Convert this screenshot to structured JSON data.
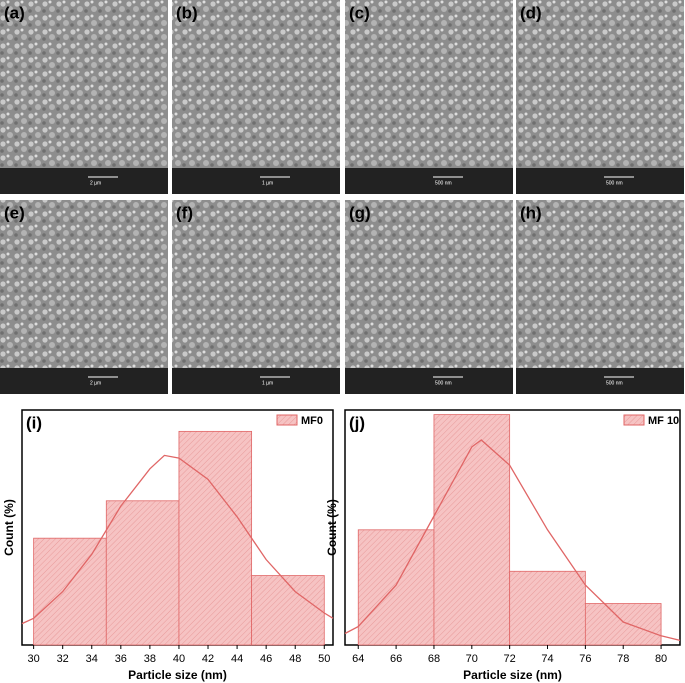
{
  "panels": [
    {
      "label": "(a)",
      "scale": "2 µm"
    },
    {
      "label": "(b)",
      "scale": "1 µm"
    },
    {
      "label": "(c)",
      "scale": "500 nm"
    },
    {
      "label": "(d)",
      "scale": "500 nm"
    },
    {
      "label": "(e)",
      "scale": "2 µm"
    },
    {
      "label": "(f)",
      "scale": "1 µm"
    },
    {
      "label": "(g)",
      "scale": "500 nm"
    },
    {
      "label": "(h)",
      "scale": "500 nm"
    }
  ],
  "chart_data": [
    {
      "type": "histogram",
      "label": "(i)",
      "name": "MF0",
      "color": "#f6c3c3",
      "edge": "#e06666",
      "xlabel": "Particle size (nm)",
      "ylabel": "Count (%)",
      "bins": [
        30,
        35,
        40,
        45,
        50
      ],
      "values": [
        20,
        27,
        40,
        13
      ],
      "xlim": [
        29.2,
        50.6
      ],
      "ylim": [
        0,
        44
      ],
      "xticks": [
        30,
        32,
        34,
        36,
        38,
        40,
        42,
        44,
        46,
        48,
        50
      ],
      "fit": {
        "color": "#e06666",
        "x": [
          29.2,
          30,
          32,
          34,
          36,
          38,
          39,
          40,
          42,
          44,
          46,
          48,
          50,
          50.6
        ],
        "values": [
          4,
          5,
          10,
          17,
          26,
          33,
          35.5,
          35,
          31,
          24,
          16,
          10,
          6,
          5
        ]
      }
    },
    {
      "type": "histogram",
      "label": "(j)",
      "name": "MF 10",
      "color": "#f6c3c3",
      "edge": "#e06666",
      "xlabel": "Particle size (nm)",
      "ylabel": "Count (%)",
      "bins": [
        64,
        68,
        72,
        76,
        80
      ],
      "values": [
        25,
        50,
        16,
        9
      ],
      "xlim": [
        63.3,
        81
      ],
      "ylim": [
        0,
        51
      ],
      "xticks": [
        64,
        66,
        68,
        70,
        72,
        74,
        76,
        78,
        80
      ],
      "fit": {
        "color": "#e06666",
        "x": [
          63.3,
          64,
          66,
          68,
          70,
          70.5,
          72,
          74,
          76,
          78,
          80,
          81
        ],
        "values": [
          2.5,
          4,
          13,
          28,
          43,
          44.5,
          39,
          25,
          13,
          5,
          2,
          1
        ]
      }
    }
  ]
}
